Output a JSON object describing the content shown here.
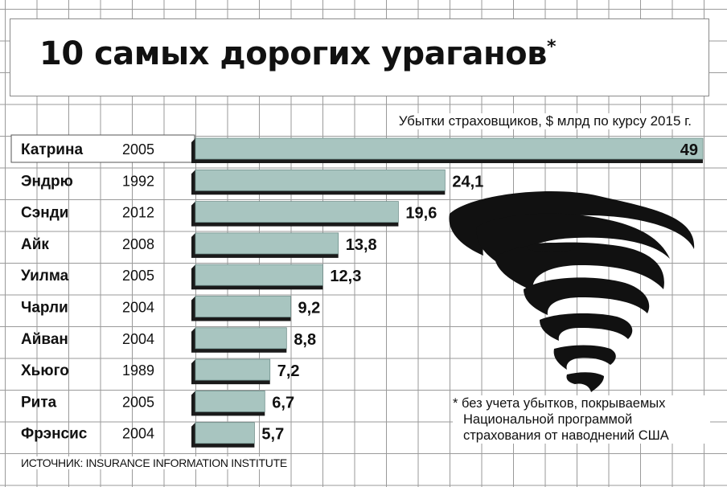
{
  "title": "10 самых дорогих ураганов",
  "title_mark": "*",
  "units_label": "Убытки страховщиков, $ млрд по курсу 2015 г.",
  "footnote": [
    "* без учета убытков, покрываемых",
    "Национальной программой",
    "страхования от наводнений США"
  ],
  "source": "ИСТОЧНИК: INSURANCE INFORMATION INSTITUTE",
  "colors": {
    "bar": "#a8c5c0",
    "bar_shadow": "#1a1a1a",
    "highlight_row": "#ffffff",
    "grid": "#9a9a9a"
  },
  "icons": {
    "tornado": "tornado-icon"
  },
  "chart_data": {
    "type": "bar",
    "orientation": "horizontal",
    "categories": [
      "Катрина",
      "Эндрю",
      "Сэнди",
      "Айк",
      "Уилма",
      "Чарли",
      "Айван",
      "Хьюго",
      "Рита",
      "Фрэнсис"
    ],
    "years": [
      "2005",
      "1992",
      "2012",
      "2008",
      "2005",
      "2004",
      "2004",
      "1989",
      "2005",
      "2004"
    ],
    "values": [
      49,
      24.1,
      19.6,
      13.8,
      12.3,
      9.2,
      8.8,
      7.2,
      6.7,
      5.7
    ],
    "value_labels": [
      "49",
      "24,1",
      "19,6",
      "13,8",
      "12,3",
      "9,2",
      "8,8",
      "7,2",
      "6,7",
      "5,7"
    ],
    "xlim": [
      0,
      49
    ],
    "grid": true
  }
}
